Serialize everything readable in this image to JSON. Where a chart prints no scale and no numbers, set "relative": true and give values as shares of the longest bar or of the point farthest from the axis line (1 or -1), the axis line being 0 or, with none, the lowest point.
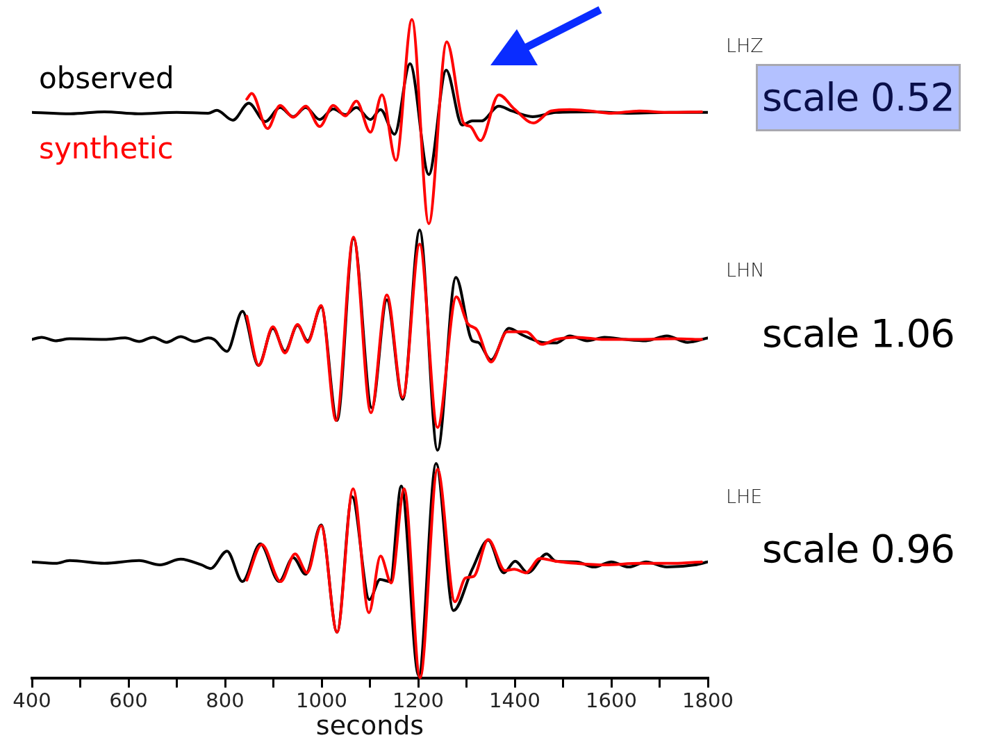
{
  "chart_data": [
    {
      "type": "line",
      "relative": true,
      "xlim": [
        400,
        1800
      ],
      "tick_labels": false,
      "annotations": [
        "LHZ",
        "scale 0.52"
      ],
      "series": [
        {
          "name": "observed",
          "color": "#000000",
          "x": [
            400,
            480,
            550,
            620,
            700,
            765,
            783,
            816,
            849,
            883,
            914,
            941,
            967,
            996,
            1024,
            1049,
            1072,
            1101,
            1122,
            1151,
            1183,
            1222,
            1258,
            1291,
            1312,
            1331,
            1367,
            1394,
            1437,
            1485,
            1560,
            1640,
            1720,
            1800
          ],
          "values": [
            0.545,
            0.538,
            0.548,
            0.538,
            0.545,
            0.541,
            0.555,
            0.507,
            0.59,
            0.5,
            0.569,
            0.524,
            0.569,
            0.51,
            0.562,
            0.534,
            0.569,
            0.51,
            0.559,
            0.438,
            0.783,
            0.241,
            0.752,
            0.483,
            0.503,
            0.503,
            0.576,
            0.552,
            0.524,
            0.545,
            0.548,
            0.541,
            0.545,
            0.545
          ]
        },
        {
          "name": "synthetic",
          "color": "#ff0000",
          "x": [
            845,
            855,
            888,
            914,
            941,
            967,
            996,
            1024,
            1049,
            1072,
            1101,
            1125,
            1154,
            1187,
            1222,
            1259,
            1294,
            1308,
            1329,
            1367,
            1399,
            1439,
            1475,
            1514,
            1557,
            1600,
            1658,
            1715,
            1787
          ],
          "values": [
            0.61,
            0.638,
            0.466,
            0.579,
            0.521,
            0.576,
            0.476,
            0.579,
            0.528,
            0.6,
            0.448,
            0.631,
            0.31,
            1,
            0,
            0.89,
            0.493,
            0.476,
            0.407,
            0.631,
            0.562,
            0.493,
            0.552,
            0.559,
            0.552,
            0.541,
            0.552,
            0.545,
            0.548
          ]
        }
      ]
    },
    {
      "type": "line",
      "relative": true,
      "xlim": [
        400,
        1800
      ],
      "tick_labels": false,
      "annotations": [
        "LHN",
        "scale 1.06"
      ],
      "series": [
        {
          "color": "#000000",
          "x": [
            400,
            420,
            449,
            478,
            550,
            593,
            622,
            651,
            679,
            708,
            737,
            765,
            777,
            804,
            836,
            869,
            899,
            924,
            950,
            971,
            999,
            1032,
            1066,
            1104,
            1135,
            1168,
            1203,
            1240,
            1278,
            1312,
            1324,
            1351,
            1388,
            1417,
            1456,
            1485,
            1514,
            1550,
            1586,
            1629,
            1672,
            1715,
            1758,
            1800
          ],
          "values": [
            0.503,
            0.513,
            0.497,
            0.506,
            0.503,
            0.51,
            0.494,
            0.513,
            0.49,
            0.516,
            0.494,
            0.51,
            0.503,
            0.449,
            0.631,
            0.385,
            0.554,
            0.449,
            0.567,
            0.497,
            0.651,
            0.135,
            0.962,
            0.192,
            0.683,
            0.231,
            1,
            0,
            0.785,
            0.497,
            0.49,
            0.41,
            0.554,
            0.522,
            0.49,
            0.487,
            0.519,
            0.497,
            0.513,
            0.503,
            0.497,
            0.519,
            0.49,
            0.51
          ]
        },
        {
          "color": "#ff0000",
          "x": [
            845,
            870,
            899,
            924,
            950,
            971,
            999,
            1030,
            1066,
            1102,
            1135,
            1168,
            1203,
            1240,
            1279,
            1302,
            1322,
            1351,
            1384,
            1423,
            1456,
            1485,
            1528,
            1586,
            1658,
            1730,
            1787
          ],
          "values": [
            0.609,
            0.385,
            0.561,
            0.442,
            0.571,
            0.49,
            0.657,
            0.135,
            0.968,
            0.17,
            0.705,
            0.24,
            0.936,
            0.103,
            0.696,
            0.577,
            0.545,
            0.401,
            0.538,
            0.538,
            0.481,
            0.503,
            0.513,
            0.503,
            0.503,
            0.506,
            0.503
          ]
        }
      ]
    },
    {
      "type": "line",
      "relative": true,
      "xlim": [
        400,
        1800
      ],
      "tick_labels": "x",
      "xlabel": "seconds",
      "annotations": [
        "LHE",
        "scale 0.96"
      ],
      "xticks": [
        400,
        {
          "value": 500,
          "label": null
        },
        600,
        {
          "value": 700,
          "label": null
        },
        800,
        {
          "value": 900,
          "label": null
        },
        1000,
        {
          "value": 1100,
          "label": null
        },
        1200,
        {
          "value": 1300,
          "label": null
        },
        1400,
        {
          "value": 1500,
          "label": null
        },
        1600,
        {
          "value": 1700,
          "label": null
        },
        1800
      ],
      "series": [
        {
          "color": "#000000",
          "x": [
            400,
            449,
            478,
            550,
            622,
            665,
            708,
            751,
            770,
            804,
            836,
            873,
            912,
            941,
            967,
            999,
            1032,
            1063,
            1099,
            1121,
            1142,
            1165,
            1201,
            1237,
            1273,
            1312,
            1345,
            1377,
            1401,
            1427,
            1466,
            1485,
            1528,
            1564,
            1600,
            1636,
            1672,
            1715,
            1773,
            1800
          ],
          "values": [
            0.541,
            0.534,
            0.547,
            0.534,
            0.547,
            0.527,
            0.554,
            0.527,
            0.51,
            0.591,
            0.449,
            0.625,
            0.449,
            0.561,
            0.483,
            0.713,
            0.213,
            0.845,
            0.365,
            0.459,
            0.449,
            0.895,
            0.01,
            1,
            0.314,
            0.507,
            0.642,
            0.49,
            0.544,
            0.49,
            0.578,
            0.544,
            0.541,
            0.517,
            0.541,
            0.517,
            0.541,
            0.517,
            0.527,
            0.541
          ]
        },
        {
          "color": "#ff0000",
          "x": [
            845,
            876,
            915,
            945,
            970,
            999,
            1032,
            1065,
            1098,
            1122,
            1144,
            1171,
            1204,
            1240,
            1276,
            1298,
            1315,
            1345,
            1380,
            1399,
            1423,
            1452,
            1485,
            1528,
            1586,
            1658,
            1730,
            1787
          ],
          "values": [
            0.456,
            0.622,
            0.449,
            0.578,
            0.49,
            0.709,
            0.213,
            0.882,
            0.304,
            0.568,
            0.443,
            0.882,
            0,
            0.973,
            0.355,
            0.466,
            0.473,
            0.645,
            0.5,
            0.507,
            0.49,
            0.557,
            0.544,
            0.534,
            0.527,
            0.534,
            0.534,
            0.541
          ]
        }
      ]
    }
  ]
}
